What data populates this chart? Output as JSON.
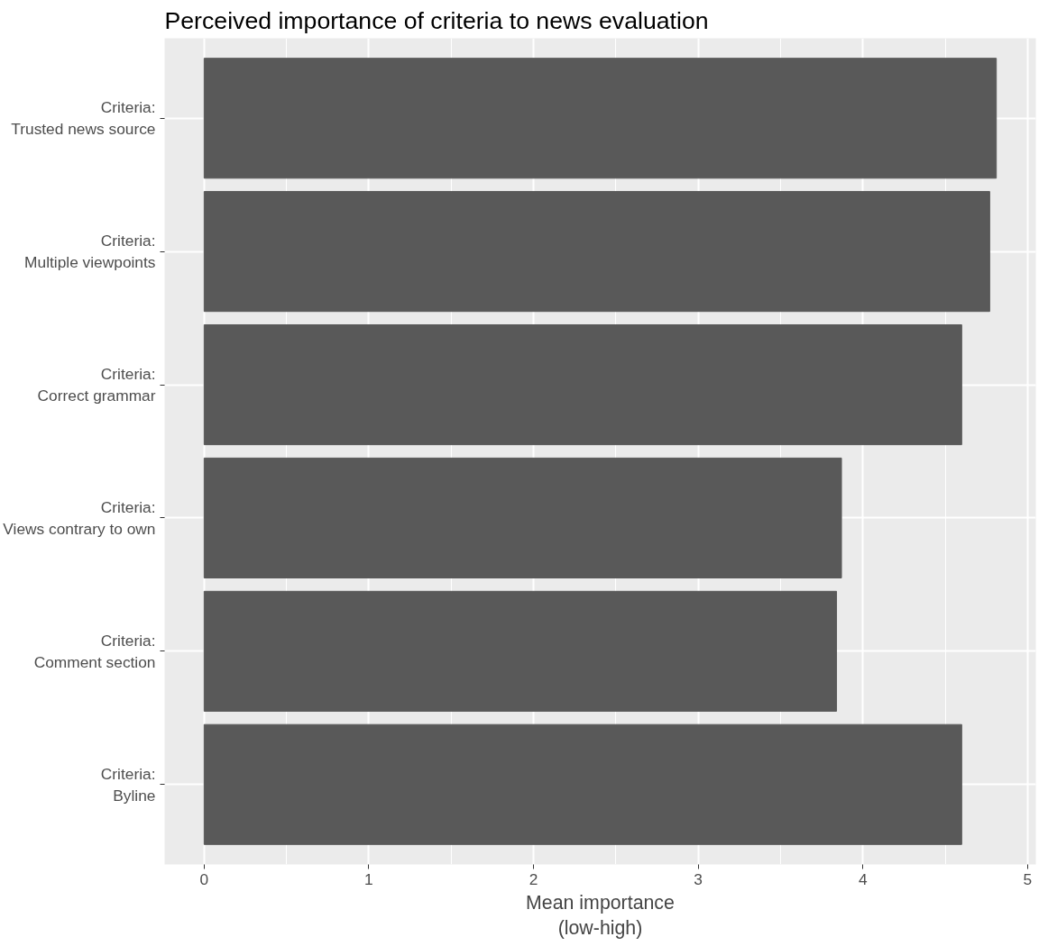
{
  "chart_data": {
    "type": "bar",
    "orientation": "horizontal",
    "title": "Perceived importance of criteria to news evaluation",
    "xlabel": "Mean importance\n(low-high)",
    "categories": [
      "Criteria:\nTrusted news source",
      "Criteria:\nMultiple viewpoints",
      "Criteria:\nCorrect grammar",
      "Criteria:\nViews contrary to own",
      "Criteria:\nComment section",
      "Criteria:\nByline"
    ],
    "values": [
      4.81,
      4.77,
      4.6,
      3.87,
      3.84,
      4.6
    ],
    "color": "#595959",
    "xlim": [
      -0.24,
      5.05
    ],
    "xticks": [
      0,
      1,
      2,
      3,
      4,
      5
    ],
    "grid": true
  }
}
